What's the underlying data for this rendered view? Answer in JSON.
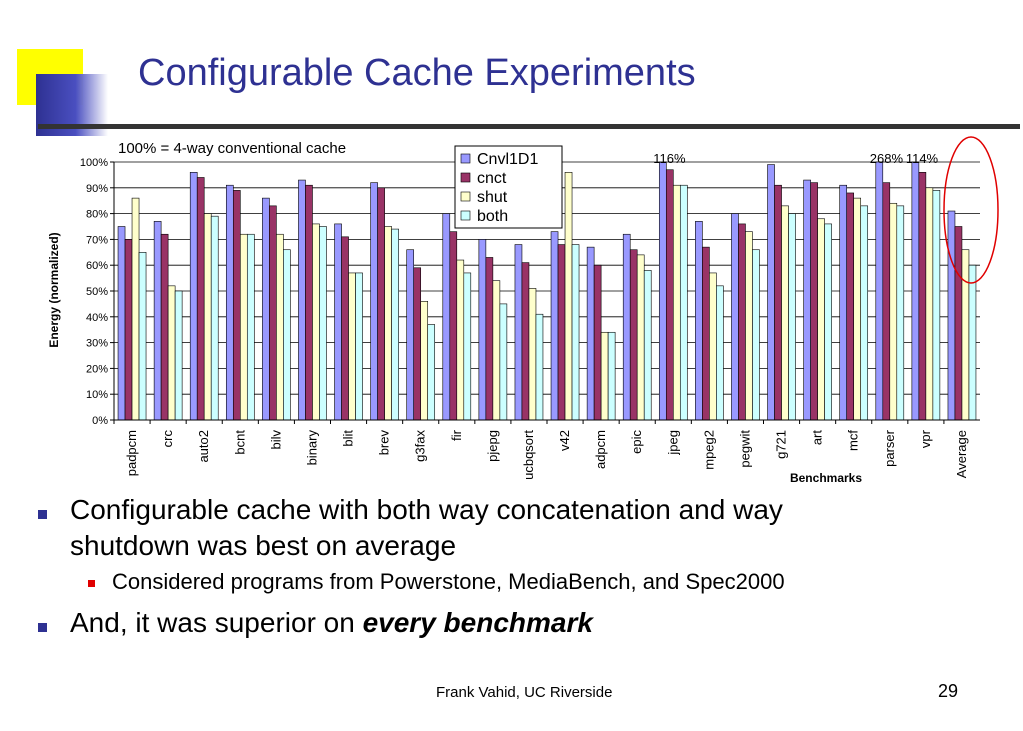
{
  "slide": {
    "title": "Configurable Cache Experiments",
    "bullets": [
      {
        "text": "Configurable cache with both way concatenation and way",
        "cont": "shutdown was best on average"
      },
      {
        "text": "Considered programs from Powerstone, MediaBench, and Spec2000"
      },
      {
        "text": "And, it was superior on ",
        "emph": "every benchmark"
      }
    ],
    "footer": "Frank Vahid, UC Riverside",
    "page_number": "29"
  },
  "colors": {
    "title": "#2e3192",
    "deco_blue": "#2e3192",
    "deco_yellow": "#ffff00",
    "bullet_blue": "#2e3192",
    "bullet_red": "#e00000",
    "highlight_circle": "#e00000"
  },
  "chart_data": {
    "type": "bar",
    "annotation": "100% = 4-way conventional cache",
    "ylabel": "Energy (normalized)",
    "xlabel": "Benchmarks",
    "ylim": [
      0,
      100
    ],
    "yticks": [
      "0%",
      "10%",
      "20%",
      "30%",
      "40%",
      "50%",
      "60%",
      "70%",
      "80%",
      "90%",
      "100%"
    ],
    "grid": true,
    "legend_position": "top-center",
    "categories": [
      "padpcm",
      "crc",
      "auto2",
      "bcnt",
      "bilv",
      "binary",
      "blit",
      "brev",
      "g3fax",
      "fir",
      "pjepg",
      "ucbqsort",
      "v42",
      "adpcm",
      "epic",
      "jpeg",
      "mpeg2",
      "pegwit",
      "g721",
      "art",
      "mcf",
      "parser",
      "vpr",
      "Average"
    ],
    "series": [
      {
        "name": "Cnvl1D1",
        "color": "#9999ff",
        "values": [
          75,
          77,
          96,
          91,
          86,
          93,
          76,
          92,
          66,
          80,
          70,
          68,
          73,
          67,
          72,
          100,
          77,
          80,
          99,
          93,
          91,
          100,
          100,
          81
        ]
      },
      {
        "name": "cnct",
        "color": "#993366",
        "values": [
          70,
          72,
          94,
          89,
          83,
          91,
          71,
          90,
          59,
          73,
          63,
          61,
          68,
          60,
          66,
          97,
          67,
          76,
          91,
          92,
          88,
          92,
          96,
          75
        ]
      },
      {
        "name": "shut",
        "color": "#ffffcc",
        "values": [
          86,
          52,
          80,
          72,
          72,
          76,
          57,
          75,
          46,
          62,
          54,
          51,
          96,
          34,
          64,
          91,
          57,
          73,
          83,
          78,
          86,
          84,
          90,
          66
        ]
      },
      {
        "name": "both",
        "color": "#ccffff",
        "values": [
          65,
          50,
          79,
          72,
          66,
          75,
          57,
          74,
          37,
          57,
          45,
          41,
          68,
          34,
          58,
          91,
          52,
          66,
          80,
          76,
          83,
          83,
          89,
          60
        ]
      }
    ],
    "value_labels": [
      {
        "text": "116%",
        "category": "jpeg"
      },
      {
        "text": "268%",
        "category": "parser"
      },
      {
        "text": "114%",
        "category": "vpr"
      }
    ]
  }
}
